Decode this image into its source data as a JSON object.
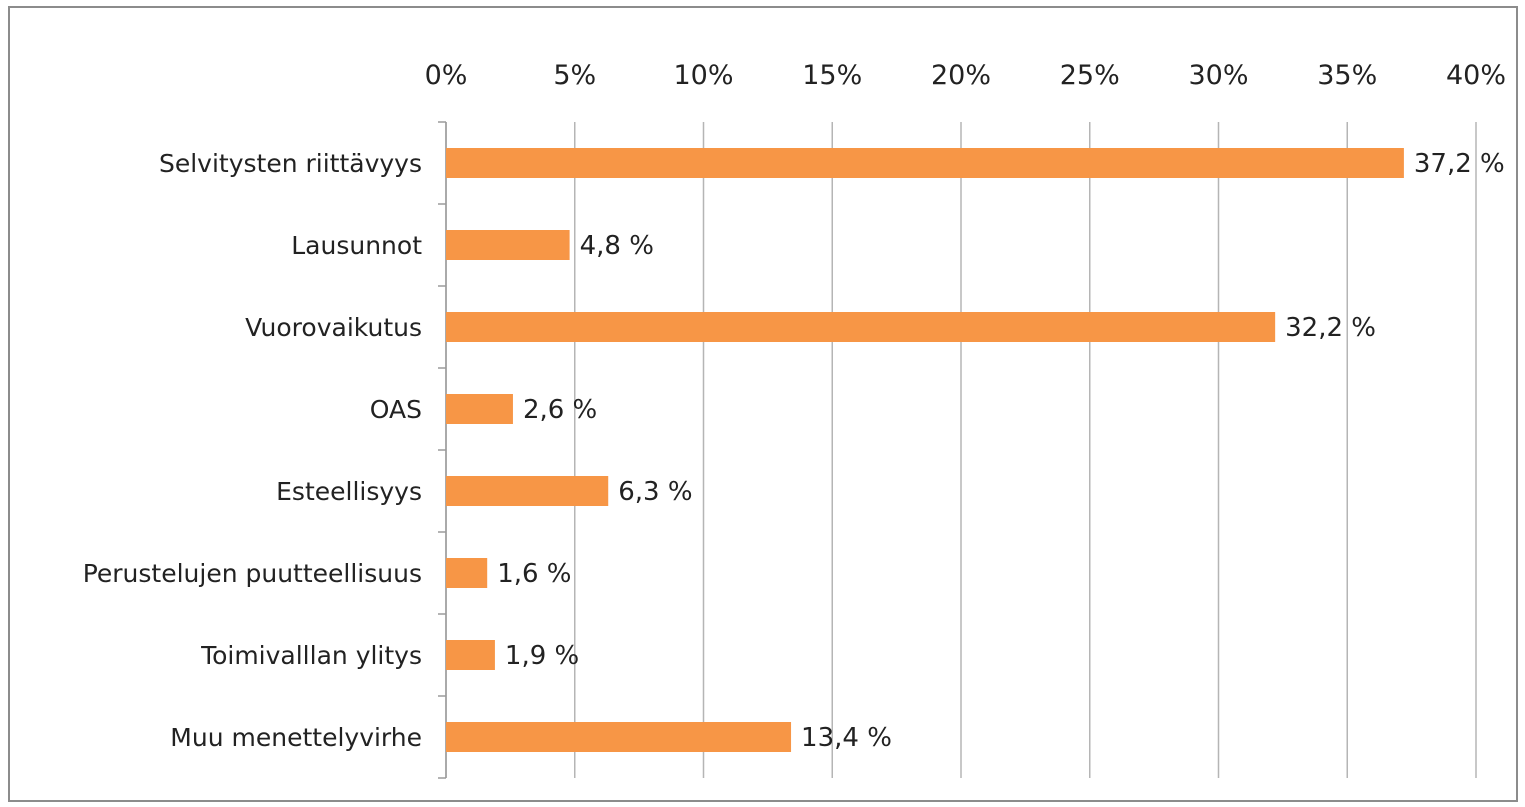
{
  "chart_data": {
    "type": "bar",
    "orientation": "horizontal",
    "categories": [
      "Selvitysten riittävyys",
      "Lausunnot",
      "Vuorovaikutus",
      "OAS",
      "Esteellisyys",
      "Perustelujen puutteellisuus",
      "Toimivalllan ylitys",
      "Muu menettelyvirhe"
    ],
    "values": [
      37.2,
      4.8,
      32.2,
      2.6,
      6.3,
      1.6,
      1.9,
      13.4
    ],
    "data_labels": [
      "37,2 %",
      "4,8 %",
      "32,2 %",
      "2,6 %",
      "6,3 %",
      "1,6 %",
      "1,9 %",
      "13,4 %"
    ],
    "xlim": [
      0,
      40
    ],
    "x_ticks": [
      0,
      5,
      10,
      15,
      20,
      25,
      30,
      35,
      40
    ],
    "x_tick_labels": [
      "0%",
      "5%",
      "10%",
      "15%",
      "20%",
      "25%",
      "30%",
      "35%",
      "40%"
    ],
    "x_axis_position": "top",
    "grid": true,
    "legend": "none",
    "title": "",
    "xlabel": "",
    "ylabel": "",
    "bar_color": "#F79646",
    "grid_color": "#b5b5b5"
  }
}
